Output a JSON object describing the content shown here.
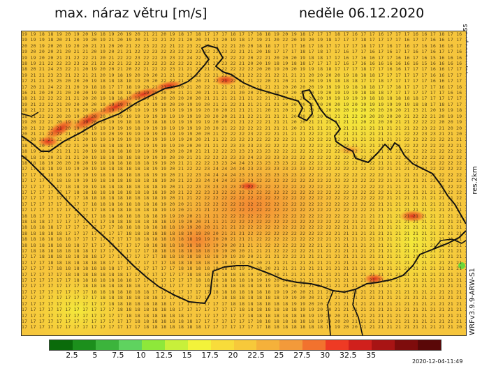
{
  "header": {
    "title": "max. náraz větru [m/s]",
    "date": "neděle 06.12.2020"
  },
  "side_labels": {
    "credit": "(c)meteopress",
    "resolution": "res.2km",
    "model": "WRFv3.9.9-ARW-S1"
  },
  "map": {
    "value_rows": [
      "19 19 18 18 19 20 19 20 19 18 19 20 19 20 21 21 20 19 18 17 18 17 17 17 18 17 17 18 18 19 20 19 18 17 17 17 18 17 16 17 17 16 17 17 17 16 16 17 18 17 16 17 16 17 17 16 17 17 17 17 17 17 18 17 16 17 16 16",
      "19 19 19 18 20 21 20 19 20 19 21 20 19 20 21 22 21 22 21 20 20 21 22 20 19 18 17 19 21 20 22 20 19 20 19 18 17 17 17 18 17 17 17 17 16 17 17 16 16 17 17 16 16 17 18 17 17 17 18 17 17 16 17 17 16 17 17 16",
      "20 20 19 20 20 19 20 20 21 21 20 20 21 22 23 22 22 21 22 23 22 22 21 22 21 20 20 18 18 17 17 17 16 17 18 17 17 17 17 18 17 17 16 17 16 17 16 16 16 16 17 16 16 17 16 16 17 16 16 17 16 16 16 16 17 15 16 16",
      "19 20 20 20 21 20 21 21 20 19 20 21 21 22 22 23 22 23 22 22 23 22 22 23 22 21 21 20 18 17 17 17 18 17 18 17 17 16 17 17 16 17 16 17 17 16 17 16 17 17 16 16 17 16 15 16 16 16 17 16 15 16 16 16 17 16 16 16",
      "19 19 20 20 21 21 22 22 21 20 21 22 22 23 22 22 23 23 22 24 22 22 21 22 22 22 20 22 21 20 20 20 19 18 18 17 17 16 17 16 16 17 17 16 16 17 16 15 16 16 16 16 16 15 16 15 16 16 16 15 16 15 16 16 15 16 16 16",
      "18 19 21 22 22 23 23 22 21 23 22 21 22 22 23 22 23 22 22 22 21 21 22 23 22 21 20 20 19 18 19 18 18 17 17 17 17 16 17 16 16 16 16 16 16 16 15 16 16 16 16 16 16 16 16 16 16 16 16 16 16 16 16 16 16 16 16 16",
      "18 20 21 24 23 22 21 20 19 20 20 21 20 22 21 22 22 23 21 21 22 21 22 22 22 22 22 20 20 19 20 20 19 19 18 18 17 17 17 18 17 17 16 16 17 17 17 16 16 17 17 16 16 16 16 16 16 16 16 16 16 16 16 16 16 16 15 16",
      "19 21 21 23 23 21 22 21 21 20 19 18 19 20 20 20 21 21 22 21 22 22 21 22 22 21 22 22 21 22 21 21 21 20 20 20 20 19 18 18 18 17 17 17 17 17 17 16 16 17 17 16 16 16 16 16 16 16 16 16 16 16 16 16 16 16 16 16",
      "17 21 21 25 25 20 20 20 19 18 18 18 18 19 20 20 22 22 21 22 20 21 22 21 22 21 21 22 20 21 20 21 21 20 19 19 18 18 18 17 17 18 17 17 17 17 17 16 16 17 17 16 16 16 16 16 15 16 16 16 16 16 16 16 16 15 16 16",
      "17 20 21 24 22 21 20 19 18 18 17 17 18 19 20 21 21 20 20 21 20 22 21 21 21 20 21 21 21 21 20 20 20 20 19 19 19 19 18 18 18 17 17 18 17 17 17 17 16 17 16 16 16 16 16 16 16 16 16 16 16 16 16 16 16 16 16 16",
      "16 21 20 20 21 20 20 20 19 18 18 18 18 19 19 20 20 20 21 21 20 21 21 21 21 20 20 21 20 20 19 20 20 20 19 20 19 19 19 18 18 18 17 17 17 17 17 17 17 16 16 17 16 16 16 16 16 16 16 16 16 16 15 16 16 16 16 15",
      "18 21 22 22 22 21 21 20 20 19 18 18 19 19 19 19 20 20 20 20 20 21 21 21 21 21 21 22 21 21 20 21 20 20 20 19 19 19 19 19 18 18 18 18 18 18 17 17 17 17 17 17 16 16 17 16 16 16 16 16 16 16 16 16 15 15 16 15",
      "19 21 22 22 21 20 20 20 20 19 19 19 19 20 19 19 19 20 20 19 19 20 21 21 22 21 21 21 21 21 20 20 20 21 20 20 20 19 20 19 19 19 19 19 19 18 18 17 18 17 17 17 17 17 16 16 16 16 16 16 15 16 16 16 15 15 15 14",
      "18 21 22 23 21 21 20 20 20 19 19 19 19 19 19 19 19 19 19 19 19 20 20 20 21 21 21 21 20 21 20 21 21 20 20 20 20 20 20 20 20 20 20 20 21 23 21 20 19 19 18 17 17 17 17 17 16 16 16 16 16 16 15 15 15 15 15 15",
      "18 21 22 22 20 20 19 19 20 20 19 19 19 19 19 19 19 19 19 19 19 20 20 20 21 21 22 21 21 21 21 20 20 20 20 21 21 21 22 20 20 20 20 20 21 22 22 21 20 19 19 18 18 17 17 17 17 16 17 16 16 16 16 15 15 15 15 15",
      "19 20 22 21 20 19 19 19 20 19 19 19 18 18 19 18 18 19 19 19 19 19 20 20 21 21 22 22 21 21 21 20 20 21 21 21 21 21 21 20 21 20 20 21 21 22 22 22 20 20 19 19 18 18 18 17 17 17 17 17 16 16 16 16 15 15 15 15",
      "20 21 22 22 21 20 19 19 19 19 19 19 19 18 19 19 19 19 19 19 19 20 20 21 22 22 22 22 21 21 21 20 21 21 21 21 21 21 21 21 21 21 21 21 21 22 23 22 21 20 20 19 19 18 18 18 18 17 17 17 17 16 16 16 16 15 15 15",
      "20 21 21 22 22 21 20 20 19 19 20 19 19 19 19 19 19 19 19 19 20 20 21 22 22 22 23 22 22 21 21 21 21 22 22 21 21 21 21 21 21 21 21 21 22 22 23 23 21 21 20 20 19 19 18 18 18 18 17 17 17 17 16 16 16 16 15 15",
      "19 20 21 21 22 22 21 20 19 19 19 19 19 19 19 19 19 19 19 20 20 21 21 22 23 22 23 22 22 22 22 21 21 22 22 22 22 21 21 21 21 21 21 21 22 22 22 22 22 21 21 20 20 19 19 18 18 18 17 17 17 17 17 16 16 16 15 15",
      "18 19 20 21 21 22 21 20 19 18 18 18 19 19 19 19 19 19 20 20 20 21 21 22 23 23 23 23 22 22 22 22 22 22 22 22 22 22 21 21 21 21 21 21 22 22 22 22 22 22 21 20 20 20 19 19 18 18 18 18 17 17 17 17 17 16 16 15",
      "18 19 20 21 21 21 21 20 19 18 18 18 18 19 19 19 19 20 20 20 21 21 22 22 23 23 23 23 23 22 22 22 22 22 22 22 22 22 22 21 21 21 21 22 22 22 22 22 22 22 22 21 21 20 20 19 19 19 18 18 18 18 18 17 17 17 16 16",
      "18 18 19 20 21 21 21 20 19 18 18 18 18 18 19 19 19 20 20 21 21 22 22 23 23 23 24 23 23 23 23 22 22 22 22 22 22 22 22 22 21 21 21 22 22 22 22 22 22 22 22 21 21 20 20 20 19 19 19 18 18 18 18 18 17 17 17 16",
      "18 18 18 19 20 20 20 20 19 18 18 18 18 18 18 19 19 20 21 21 22 22 23 23 24 24 23 23 23 23 23 22 22 22 22 22 22 22 22 22 22 21 21 21 22 22 22 22 22 22 22 22 21 21 21 20 20 19 19 19 18 18 18 18 18 17 17 17",
      "17 17 18 18 19 19 19 20 19 18 18 18 18 18 18 19 19 20 21 22 22 23 24 24 24 24 23 23 23 23 23 23 23 22 22 22 22 22 22 22 22 22 21 21 21 22 22 22 22 22 22 22 22 22 21 21 20 20 20 19 19 19 18 18 18 18 17 17",
      "17 17 17 18 18 19 19 19 19 18 18 18 18 18 18 19 19 20 21 22 23 24 24 24 24 23 23 23 23 23 23 23 22 22 22 22 22 22 22 22 22 22 21 21 21 21 22 22 22 22 22 22 22 22 22 21 21 21 21 21 20 20 19 19 19 18 18 17",
      "17 17 17 17 18 18 19 19 19 18 18 18 18 18 18 18 19 20 21 22 23 24 24 24 23 23 23 22 22 22 22 22 22 22 22 22 22 22 22 22 22 22 21 21 21 21 21 22 22 22 22 22 22 22 22 22 22 22 23 24 22 21 21 20 19 19 18 18",
      "17 17 17 17 17 18 18 19 19 18 18 18 18 18 18 18 19 20 21 22 23 23 23 23 23 22 22 22 22 22 22 22 22 22 22 22 22 22 22 22 22 22 21 21 21 21 21 21 22 22 22 22 22 22 22 22 22 23 23 26 24 22 21 21 20 19 19 18",
      "17 17 17 17 17 17 18 18 18 18 18 18 18 18 18 18 19 20 21 22 22 23 23 22 22 22 22 22 22 22 22 22 22 22 22 22 22 22 22 22 22 22 21 21 21 21 21 21 21 22 22 22 22 22 22 22 22 22 23 23 23 22 22 21 20 20 19 18",
      "17 17 17 17 17 17 17 18 18 18 18 18 18 18 18 18 19 20 21 21 22 22 22 22 22 22 22 22 22 22 22 22 22 22 22 22 22 22 22 22 22 22 21 21 21 21 21 21 21 21 22 22 22 22 22 22 22 22 22 22 22 22 21 21 20 20 19 19",
      "17 17 17 17 17 17 17 17 18 18 18 18 18 18 18 18 19 20 20 21 21 22 22 22 22 22 22 22 22 22 22 22 22 22 22 22 22 22 22 22 22 21 21 21 21 21 21 21 21 21 21 22 22 22 22 22 22 22 22 22 22 21 21 21 21 20 20 19",
      "17 17 17 17 17 17 17 17 17 18 18 18 18 18 18 18 19 19 20 21 21 21 22 22 22 22 22 22 22 22 22 22 22 22 22 22 22 22 22 22 21 21 21 21 21 21 21 21 21 21 21 21 22 22 22 22 22 22 22 22 21 21 21 21 21 21 20 20",
      "18 18 17 17 17 17 17 17 17 18 18 18 18 18 18 18 19 19 20 20 21 21 21 22 22 22 22 22 22 22 22 22 22 22 22 22 22 22 22 21 21 21 21 21 21 21 21 21 21 21 21 21 21 22 22 22 22 22 22 21 21 21 21 21 21 22 23 21",
      "18 18 18 17 17 17 17 17 17 17 18 18 18 18 18 18 18 19 19 20 20 21 21 21 22 22 22 22 22 22 22 22 22 22 22 22 22 22 21 21 21 21 21 21 21 21 21 21 21 21 21 21 21 21 22 22 22 22 21 21 21 21 21 22 22 23 23 20",
      "18 18 18 18 17 17 17 17 17 17 17 18 18 18 18 18 18 18 19 19 20 20 21 21 21 22 22 22 22 22 22 22 22 22 22 22 22 21 21 21 21 21 21 21 21 21 21 21 21 21 21 21 21 21 21 22 22 22 21 22 22 21 22 22 22 22 21 20",
      "18 18 18 18 18 17 17 17 17 17 17 17 18 18 18 18 18 18 18 19 19 20 20 21 21 21 22 22 22 22 22 22 22 22 22 22 21 21 21 21 21 21 21 21 21 21 21 21 21 21 21 21 21 21 21 21 22 22 22 23 24 22 22 21 21 21 20 19",
      "18 18 18 18 18 18 17 17 17 17 17 17 17 18 18 18 18 18 18 18 19 19 20 20 21 21 21 22 22 22 22 22 22 22 22 21 21 21 21 21 21 21 21 21 21 21 21 21 21 21 21 21 21 21 21 21 21 22 22 22 22 22 21 21 21 20 19 19",
      "18 18 18 18 18 18 18 17 17 17 17 17 17 17 18 18 18 18 18 18 18 19 19 20 20 21 21 21 22 22 22 22 22 22 21 21 21 21 21 21 21 21 21 21 21 21 21 21 21 21 21 21 21 21 21 21 21 21 22 22 22 22 21 21 20 20 19 18",
      "17 18 18 18 18 18 18 18 17 17 17 17 17 17 17 18 18 18 18 18 18 18 19 19 20 20 21 21 21 22 22 22 22 21 21 21 21 21 21 21 21 21 21 21 21 21 21 21 21 21 21 21 21 21 21 21 21 21 21 22 22 21 21 20 20 19 19 18",
      "17 17 18 18 18 18 18 18 18 17 17 17 17 17 17 17 18 18 18 18 18 18 18 19 19 20 20 21 21 21 22 22 21 21 21 21 21 21 21 21 21 21 21 21 21 21 21 21 21 21 21 21 21 21 21 21 21 21 21 21 21 21 20 20 19 19 18 18",
      "17 17 17 18 18 18 18 18 18 18 17 17 17 17 17 17 17 18 18 18 18 18 18 18 19 19 20 20 21 21 21 21 21 21 21 21 21 21 21 21 21 21 21 21 21 21 21 21 21 21 21 21 21 21 21 21 21 21 21 21 21 20 20 19 19 18 18 17",
      "17 17 17 17 18 18 18 18 18 18 18 17 17 17 17 17 17 17 18 18 18 18 18 18 18 19 19 20 20 21 21 21 21 21 21 21 21 21 21 21 21 21 21 21 21 21 21 21 21 21 21 21 21 21 21 21 21 21 21 21 20 20 19 19 18 18 17 17",
      "17 17 17 17 17 18 18 18 18 18 18 18 17 17 17 17 17 17 17 18 18 18 18 18 18 18 19 19 20 20 21 21 21 21 21 21 21 21 21 21 21 21 21 21 21 21 21 21 21 21 21 21 21 21 21 21 21 21 21 20 20 19 19 18 18 17 17 16",
      "17 17 17 17 17 17 18 18 18 18 18 18 18 17 17 17 17 17 17 17 18 18 18 18 18 18 18 19 19 20 20 21 21 21 21 21 21 21 21 21 21 21 21 21 21 21 21 21 21 21 21 21 21 21 21 21 21 21 20 20 19 19 18 18 17 17 16 16",
      "17 17 17 17 17 17 17 18 18 18 18 18 18 18 17 17 17 17 17 17 17 18 18 18 18 18 18 18 19 19 20 20 21 21 21 21 21 21 21 21 21 21 21 21 21 21 21 21 21 21 21 21 21 21 21 21 21 20 20 19 19 18 18 17 17 16 16 16",
      "17 17 17 17 17 17 17 17 18 18 18 18 18 18 18 17 17 17 17 17 17 17 18 18 18 18 18 18 18 19 19 20 20 21 21 21 21 21 21 21 21 21 21 21 21 21 21 21 21 21 21 21 21 21 21 21 20 20 19 19 18 18 17 17 16 16 16 16",
      "17 17 17 17 17 17 17 17 17 18 18 18 18 18 18 18 17 17 17 17 17 17 17 18 18 18 18 18 18 18 19 19 20 20 21 21 21 21 21 21 21 21 21 21 21 21 21 21 21 21 21 21 21 21 21 20 20 19 19 18 18 17 17 16 16 16 16 16",
      "17 17 17 17 17 17 17 17 17 17 18 18 18 18 18 18 18 17 17 17 17 17 17 17 18 18 18 18 18 18 18 19 19 20 20 21 21 21 21 21 21 21 21 21 21 21 21 21 21 21 21 21 21 21 20 20 19 19 18 18 17 17 16 16 16 16 16 16",
      "17 17 17 17 17 17 17 17 17 17 17 18 18 18 18 18 18 18 17 17 17 17 17 17 17 18 18 18 18 18 18 18 19 19 20 20 21 21 21 21 21 21 21 21 21 21 21 21 21 21 21 21 21 20 20 19 19 18 18 17 17 16 16 16 16 16 16 16",
      "17 17 17 17 17 17 17 17 17 17 17 17 18 18 18 18 18 18 18 17 17 17 17 17 17 17 18 18 18 18 18 18 18 19 19 20 20 21 21 21 21 21 21 21 21 21 21 21 21 21 21 21 20 20 19 19 18 18 17 17 16 16 16 16 16 16 16 16",
      "17 17 17 17 17 17 17 17 17 17 17 17 17 18 18 18 18 18 18 18 17 17 17 17 17 17 17 18 18 18 18 18 18 18 19 19 20 20 21 21 21 21 21 21 21 21 21 21 21 21 21 20 20 19 19 18 18 17 17 16 16 16 16 16 16 16 16 16",
      "17 17 17 17 17 17 17 17 17 17 17 17 17 17 18 18 18 18 18 18 18 17 17 17 17 17 17 17 18 18 18 18 18 18 18 19 19 20 20 21 21 21 21 21 21 21 21 21 21 21 20 20 19 19 18 18 17 17 16 16 16 16 16 16 16 16 16 16"
    ]
  },
  "colorbar": {
    "colors": [
      "#0a6b0a",
      "#1c8f1c",
      "#3cb43c",
      "#5fd35f",
      "#8ee83a",
      "#c8f03a",
      "#f3f33a",
      "#f8dc3a",
      "#f7c93a",
      "#f5b13a",
      "#f39a3a",
      "#f2722e",
      "#ee3a24",
      "#d0201c",
      "#a81414",
      "#7e0c0c",
      "#5a0808"
    ],
    "ticks": [
      "2.5",
      "5",
      "7.5",
      "10",
      "12.5",
      "15",
      "17.5",
      "20",
      "22.5",
      "25",
      "27.5",
      "30",
      "32.5",
      "35"
    ]
  },
  "footer": {
    "timestamp": "2020-12-04-11:49"
  }
}
